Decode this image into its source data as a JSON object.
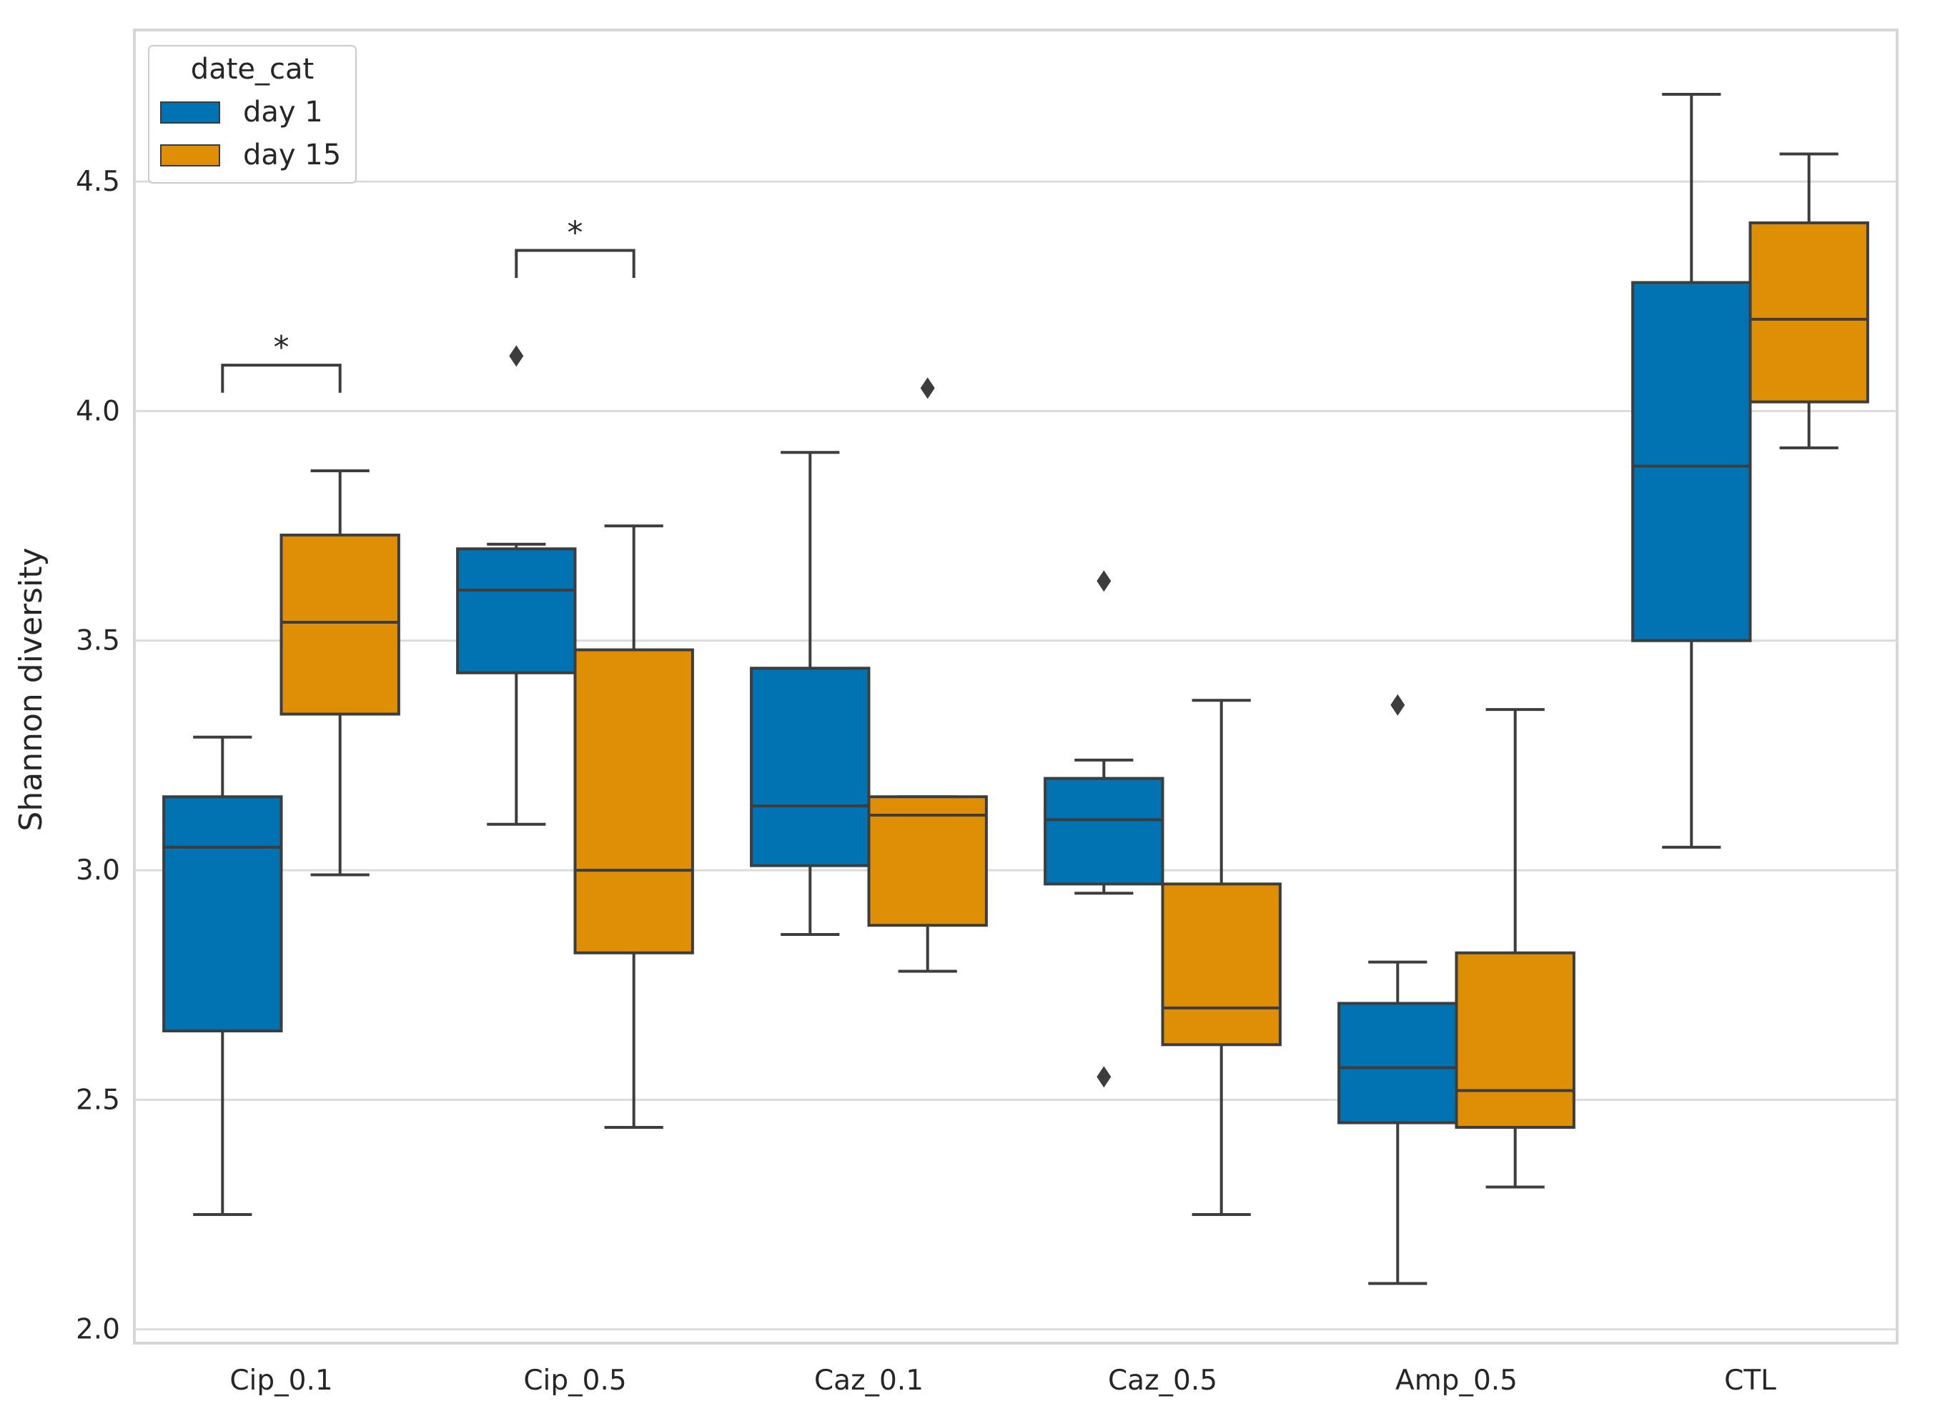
{
  "chart_data": {
    "type": "box",
    "title": "",
    "xlabel": "",
    "ylabel": "Shannon diversity",
    "ylim": [
      1.97,
      4.83
    ],
    "yticks": [
      "2.0",
      "2.5",
      "3.0",
      "3.5",
      "4.0",
      "4.5"
    ],
    "grid": "horizontal",
    "categories": [
      "Cip_0.1",
      "Cip_0.5",
      "Caz_0.1",
      "Caz_0.5",
      "Amp_0.5",
      "CTL"
    ],
    "legend": {
      "title": "date_cat",
      "placement": "top-left"
    },
    "series": [
      {
        "name": "day 1",
        "color": "#0173b2",
        "boxes": [
          {
            "whislo": 2.25,
            "q1": 2.65,
            "med": 3.05,
            "q3": 3.16,
            "whishi": 3.29,
            "fliers": []
          },
          {
            "whislo": 3.1,
            "q1": 3.43,
            "med": 3.61,
            "q3": 3.7,
            "whishi": 3.71,
            "fliers": [
              4.12
            ]
          },
          {
            "whislo": 2.86,
            "q1": 3.01,
            "med": 3.14,
            "q3": 3.44,
            "whishi": 3.91,
            "fliers": []
          },
          {
            "whislo": 2.95,
            "q1": 2.97,
            "med": 3.11,
            "q3": 3.2,
            "whishi": 3.24,
            "fliers": [
              3.63,
              2.55
            ]
          },
          {
            "whislo": 2.1,
            "q1": 2.45,
            "med": 2.57,
            "q3": 2.71,
            "whishi": 2.8,
            "fliers": [
              3.36
            ]
          },
          {
            "whislo": 3.05,
            "q1": 3.5,
            "med": 3.88,
            "q3": 4.28,
            "whishi": 4.69,
            "fliers": []
          }
        ]
      },
      {
        "name": "day 15",
        "color": "#de8f05",
        "boxes": [
          {
            "whislo": 2.99,
            "q1": 3.34,
            "med": 3.54,
            "q3": 3.73,
            "whishi": 3.87,
            "fliers": []
          },
          {
            "whislo": 2.44,
            "q1": 2.82,
            "med": 3.0,
            "q3": 3.48,
            "whishi": 3.75,
            "fliers": []
          },
          {
            "whislo": 2.78,
            "q1": 2.88,
            "med": 3.12,
            "q3": 3.16,
            "whishi": 3.16,
            "fliers": [
              4.05
            ]
          },
          {
            "whislo": 2.25,
            "q1": 2.62,
            "med": 2.7,
            "q3": 2.97,
            "whishi": 3.37,
            "fliers": []
          },
          {
            "whislo": 2.31,
            "q1": 2.44,
            "med": 2.52,
            "q3": 2.82,
            "whishi": 3.35,
            "fliers": []
          },
          {
            "whislo": 3.92,
            "q1": 4.02,
            "med": 4.2,
            "q3": 4.41,
            "whishi": 4.56,
            "fliers": []
          }
        ]
      }
    ],
    "annotations": [
      {
        "category_index": 0,
        "text": "*",
        "bracket_bottom": 4.04,
        "bracket_top": 4.1
      },
      {
        "category_index": 1,
        "text": "*",
        "bracket_bottom": 4.29,
        "bracket_top": 4.35
      }
    ]
  }
}
